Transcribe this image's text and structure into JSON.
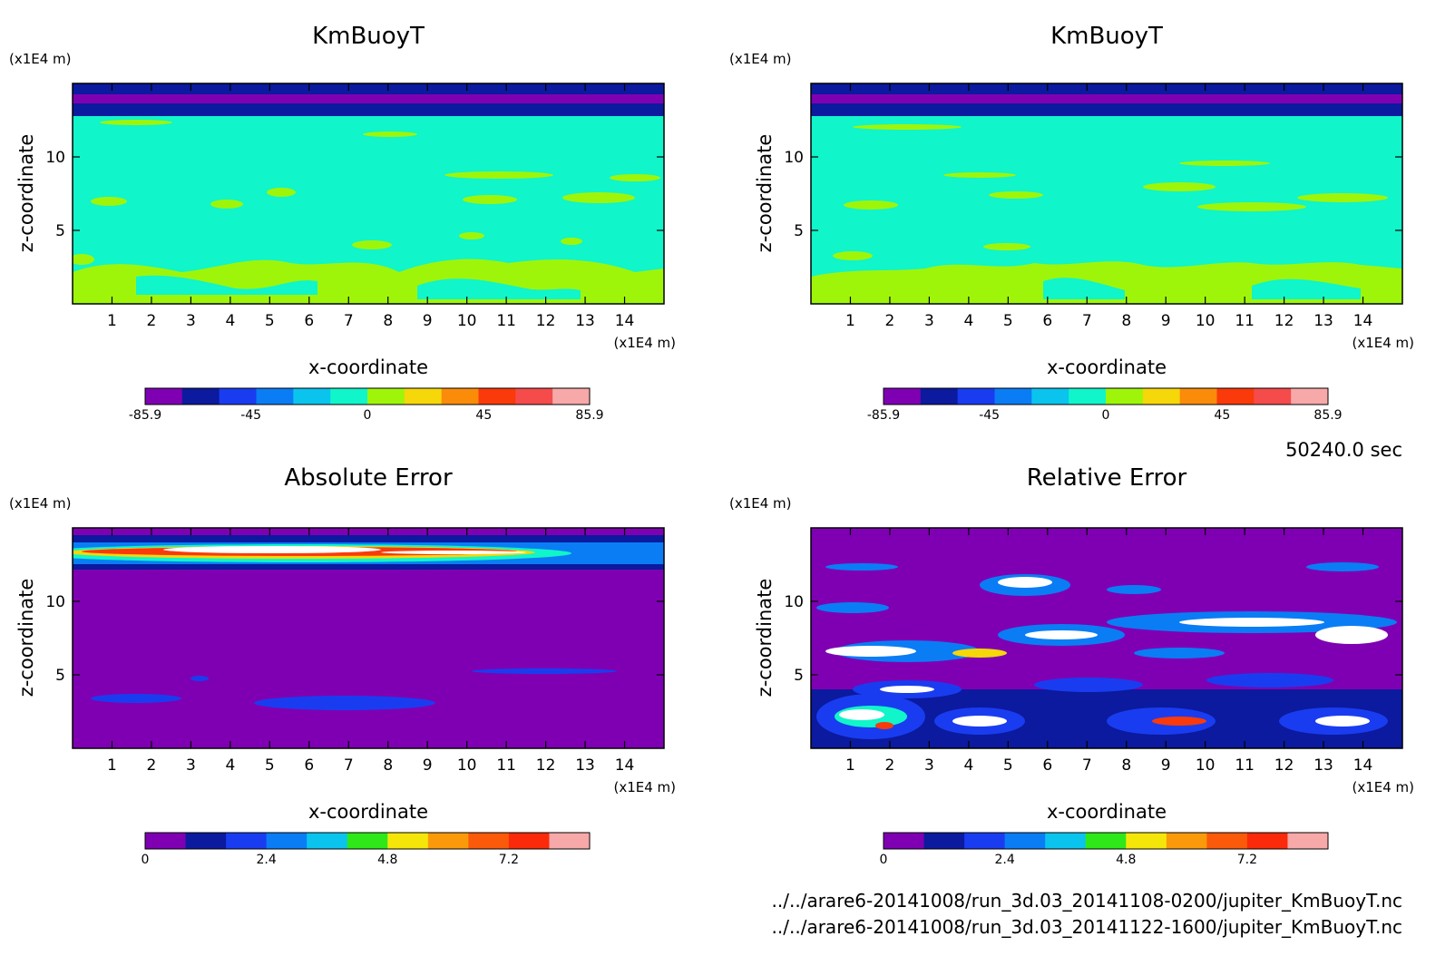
{
  "time_label": "50240.0 sec",
  "files": [
    "../../arare6-20141008/run_3d.03_20141108-0200/jupiter_KmBuoyT.nc",
    "../../arare6-20141008/run_3d.03_20141122-1600/jupiter_KmBuoyT.nc"
  ],
  "colors": {
    "field_scale": [
      "#7f00b3",
      "#0b1a9e",
      "#1a3cf0",
      "#0a7df5",
      "#0ac4ee",
      "#10f5c9",
      "#9ef50a",
      "#f5d70a",
      "#fa8c0a",
      "#fa3a0a",
      "#f54b4b",
      "#f7a8a8"
    ],
    "error_scale": [
      "#7f00b3",
      "#0b1a9e",
      "#1a3cf0",
      "#0a7df5",
      "#0ac4ee",
      "#2ee81a",
      "#f5e60a",
      "#fa9a0a",
      "#fa5a0a",
      "#fa2a0a",
      "#f7a8a8"
    ]
  },
  "chart_data": [
    {
      "type": "heatmap",
      "title": "KmBuoyT",
      "xlabel": "x-coordinate",
      "ylabel": "z-coordinate",
      "x_unit": "(x1E4 m)",
      "y_unit": "(x1E4 m)",
      "xlim": [
        0,
        15
      ],
      "ylim": [
        0,
        15
      ],
      "x_ticks": [
        "1",
        "2",
        "3",
        "4",
        "5",
        "6",
        "7",
        "8",
        "9",
        "10",
        "11",
        "12",
        "13",
        "14"
      ],
      "y_ticks": [
        "5",
        "10"
      ],
      "colorbar": {
        "min": -85.9,
        "max": 85.9,
        "levels": 12,
        "tick_labels": [
          "-85.9",
          "-45",
          "0",
          "45",
          "85.9"
        ]
      }
    },
    {
      "type": "heatmap",
      "title": "KmBuoyT",
      "xlabel": "x-coordinate",
      "ylabel": "z-coordinate",
      "x_unit": "(x1E4 m)",
      "y_unit": "(x1E4 m)",
      "xlim": [
        0,
        15
      ],
      "ylim": [
        0,
        15
      ],
      "x_ticks": [
        "1",
        "2",
        "3",
        "4",
        "5",
        "6",
        "7",
        "8",
        "9",
        "10",
        "11",
        "12",
        "13",
        "14"
      ],
      "y_ticks": [
        "5",
        "10"
      ],
      "colorbar": {
        "min": -85.9,
        "max": 85.9,
        "levels": 12,
        "tick_labels": [
          "-85.9",
          "-45",
          "0",
          "45",
          "85.9"
        ]
      }
    },
    {
      "type": "heatmap",
      "title": "Absolute Error",
      "xlabel": "x-coordinate",
      "ylabel": "z-coordinate",
      "x_unit": "(x1E4 m)",
      "y_unit": "(x1E4 m)",
      "xlim": [
        0,
        15
      ],
      "ylim": [
        0,
        15
      ],
      "x_ticks": [
        "1",
        "2",
        "3",
        "4",
        "5",
        "6",
        "7",
        "8",
        "9",
        "10",
        "11",
        "12",
        "13",
        "14"
      ],
      "y_ticks": [
        "5",
        "10"
      ],
      "colorbar": {
        "min": 0,
        "max": 8.8,
        "levels": 11,
        "tick_labels": [
          "0",
          "2.4",
          "4.8",
          "7.2"
        ]
      }
    },
    {
      "type": "heatmap",
      "title": "Relative Error",
      "xlabel": "x-coordinate",
      "ylabel": "z-coordinate",
      "x_unit": "(x1E4 m)",
      "y_unit": "(x1E4 m)",
      "xlim": [
        0,
        15
      ],
      "ylim": [
        0,
        15
      ],
      "x_ticks": [
        "1",
        "2",
        "3",
        "4",
        "5",
        "6",
        "7",
        "8",
        "9",
        "10",
        "11",
        "12",
        "13",
        "14"
      ],
      "y_ticks": [
        "5",
        "10"
      ],
      "colorbar": {
        "min": 0,
        "max": 8.8,
        "levels": 11,
        "tick_labels": [
          "0",
          "2.4",
          "4.8",
          "7.2"
        ]
      }
    }
  ]
}
